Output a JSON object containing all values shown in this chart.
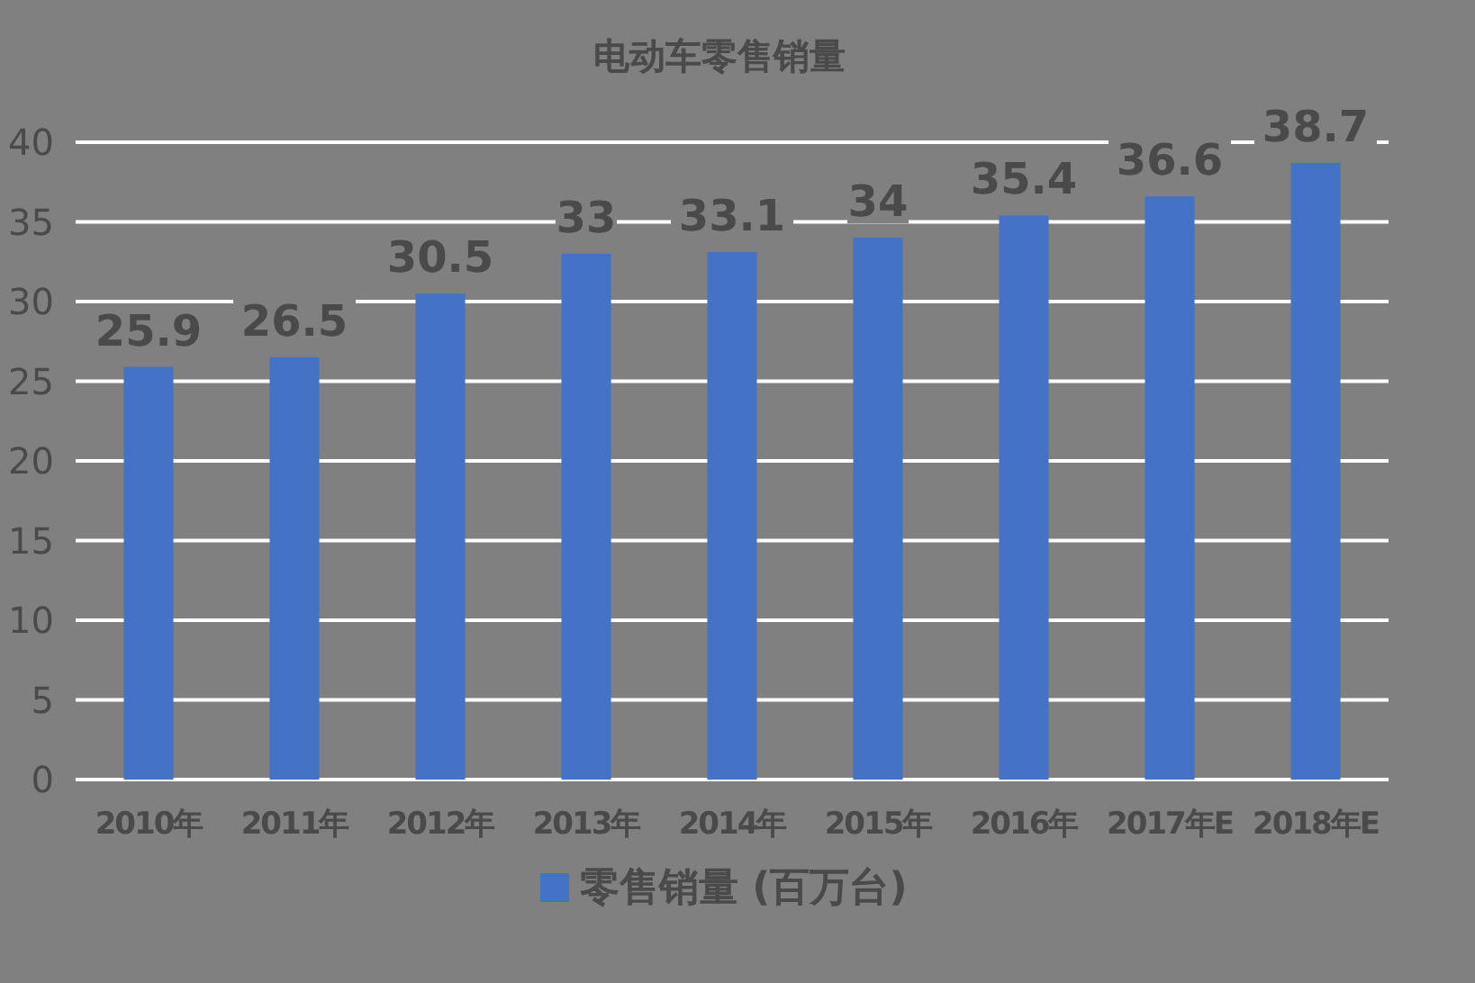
{
  "chart_data": {
    "type": "bar",
    "title": "电动车零售销量",
    "categories": [
      "2010年",
      "2011年",
      "2012年",
      "2013年",
      "2014年",
      "2015年",
      "2016年",
      "2017年E",
      "2018年E"
    ],
    "series": [
      {
        "name": "零售销量 (百万台)",
        "color": "#4472c4",
        "values": [
          25.9,
          26.5,
          30.5,
          33,
          33.1,
          34,
          35.4,
          36.6,
          38.7
        ]
      }
    ],
    "ylim": [
      0,
      40
    ],
    "yticks": [
      0,
      5,
      10,
      15,
      20,
      25,
      30,
      35,
      40
    ],
    "grid": "y",
    "legend": "bottom",
    "data_labels": true
  }
}
